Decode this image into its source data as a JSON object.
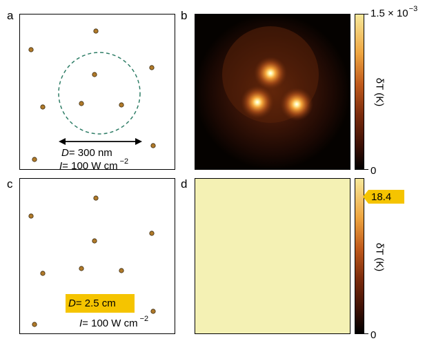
{
  "panel_labels": {
    "a": "a",
    "b": "b",
    "c": "c",
    "d": "d"
  },
  "particle_color": "#b07a2a",
  "circle_color": "#2e7d66",
  "panel_a": {
    "D_symbol": "D",
    "D_value": "= 300 nm",
    "I_symbol": "I",
    "I_value": "= 100 W cm",
    "I_exponent": "−2"
  },
  "panel_c": {
    "D_symbol": "D",
    "D_value": "=  2.5 cm",
    "I_symbol": "I",
    "I_value": "= 100 W cm",
    "I_exponent": "−2",
    "highlight_color": "#f5c400"
  },
  "colorbar_top": {
    "max_label": "1.5 × 10",
    "max_exponent": "−3",
    "min_label": "0",
    "axis_label": "δT (K)"
  },
  "colorbar_bottom": {
    "value_label": "18.4",
    "min_label": "0",
    "axis_label": "δT (K)",
    "tag_color": "#f5c400"
  },
  "uniform_map_color": "#f4f1b4"
}
